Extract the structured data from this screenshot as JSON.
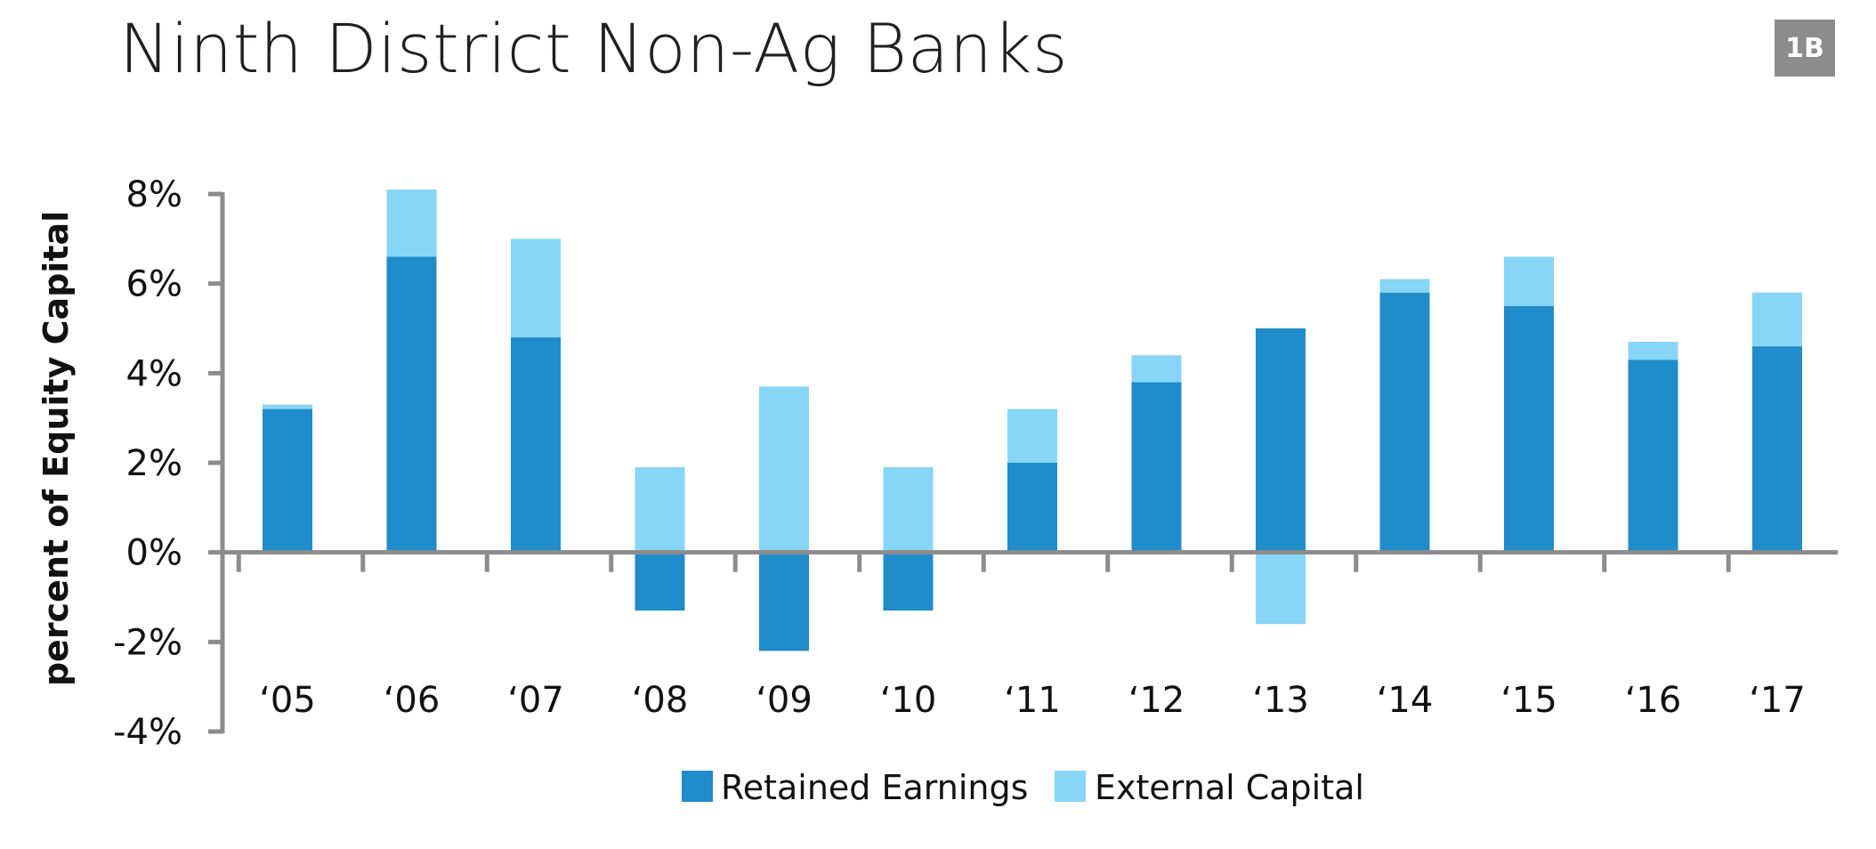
{
  "header": {
    "title": "Ninth District Non-Ag Banks",
    "badge": "1B"
  },
  "colors": {
    "retained": "#1f8ccb",
    "external": "#87d6f7",
    "axis": "#8c8c8c"
  },
  "chart_data": {
    "type": "bar",
    "stacked": true,
    "title": "Ninth District Non-Ag Banks",
    "xlabel": "",
    "ylabel": "percent of Equity Capital",
    "ylim": [
      -4,
      8
    ],
    "yticks": [
      8,
      6,
      4,
      2,
      0,
      -2,
      -4
    ],
    "ytick_labels": [
      "8%",
      "6%",
      "4%",
      "2%",
      "0%",
      "-2%",
      "-4%"
    ],
    "categories": [
      "‘05",
      "‘06",
      "‘07",
      "‘08",
      "‘09",
      "‘10",
      "‘11",
      "‘12",
      "‘13",
      "‘14",
      "‘15",
      "‘16",
      "‘17"
    ],
    "series": [
      {
        "name": "Retained Earnings",
        "values": [
          3.2,
          6.6,
          4.8,
          -1.3,
          -2.2,
          -1.3,
          2.0,
          3.8,
          5.0,
          5.8,
          5.5,
          4.3,
          4.6
        ]
      },
      {
        "name": "External Capital",
        "values": [
          0.1,
          1.5,
          2.2,
          1.9,
          3.7,
          1.9,
          1.2,
          0.6,
          -1.6,
          0.3,
          1.1,
          0.4,
          1.2
        ]
      }
    ],
    "legend": {
      "position": "bottom",
      "entries": [
        "Retained Earnings",
        "External Capital"
      ]
    },
    "grid": false
  }
}
